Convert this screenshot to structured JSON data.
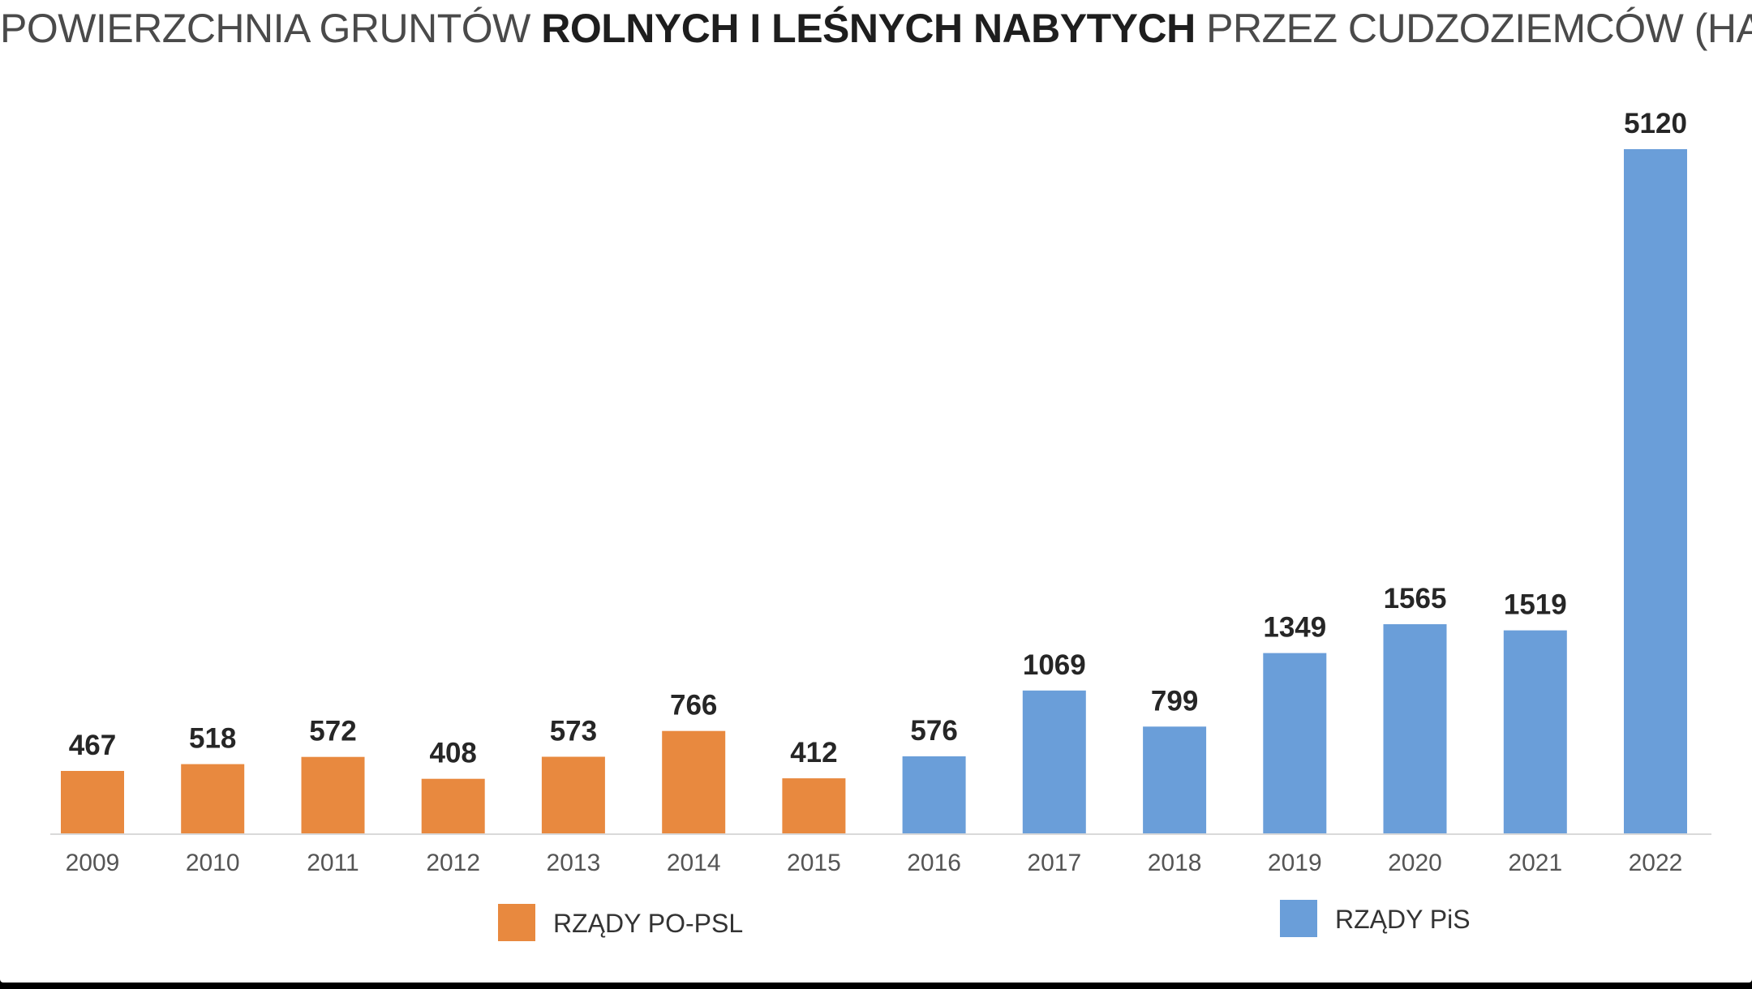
{
  "title": {
    "part1": "POWIERZCHNIA GRUNTÓW ",
    "part2": "ROLNYCH I LEŚNYCH NABYTYCH",
    "part3": " PRZEZ CUDZOZIEMCÓW (HA)"
  },
  "chart_data": {
    "type": "bar",
    "title": "POWIERZCHNIA GRUNTÓW ROLNYCH I LEŚNYCH NABYTYCH PRZEZ CUDZOZIEMCÓW (HA)",
    "categories": [
      "2009",
      "2010",
      "2011",
      "2012",
      "2013",
      "2014",
      "2015",
      "2016",
      "2017",
      "2018",
      "2019",
      "2020",
      "2021",
      "2022"
    ],
    "values": [
      467,
      518,
      572,
      408,
      573,
      766,
      412,
      576,
      1069,
      799,
      1349,
      1565,
      1519,
      5120
    ],
    "group_index": [
      0,
      0,
      0,
      0,
      0,
      0,
      0,
      1,
      1,
      1,
      1,
      1,
      1,
      1
    ],
    "groups": [
      {
        "name": "RZĄDY PO-PSL",
        "color": "#e8893f"
      },
      {
        "name": "RZĄDY PiS",
        "color": "#6a9ed9"
      }
    ],
    "xlabel": "",
    "ylabel": "",
    "ylim": [
      0,
      5120
    ],
    "grid": false,
    "data_labels": true,
    "legend_position": "bottom"
  }
}
